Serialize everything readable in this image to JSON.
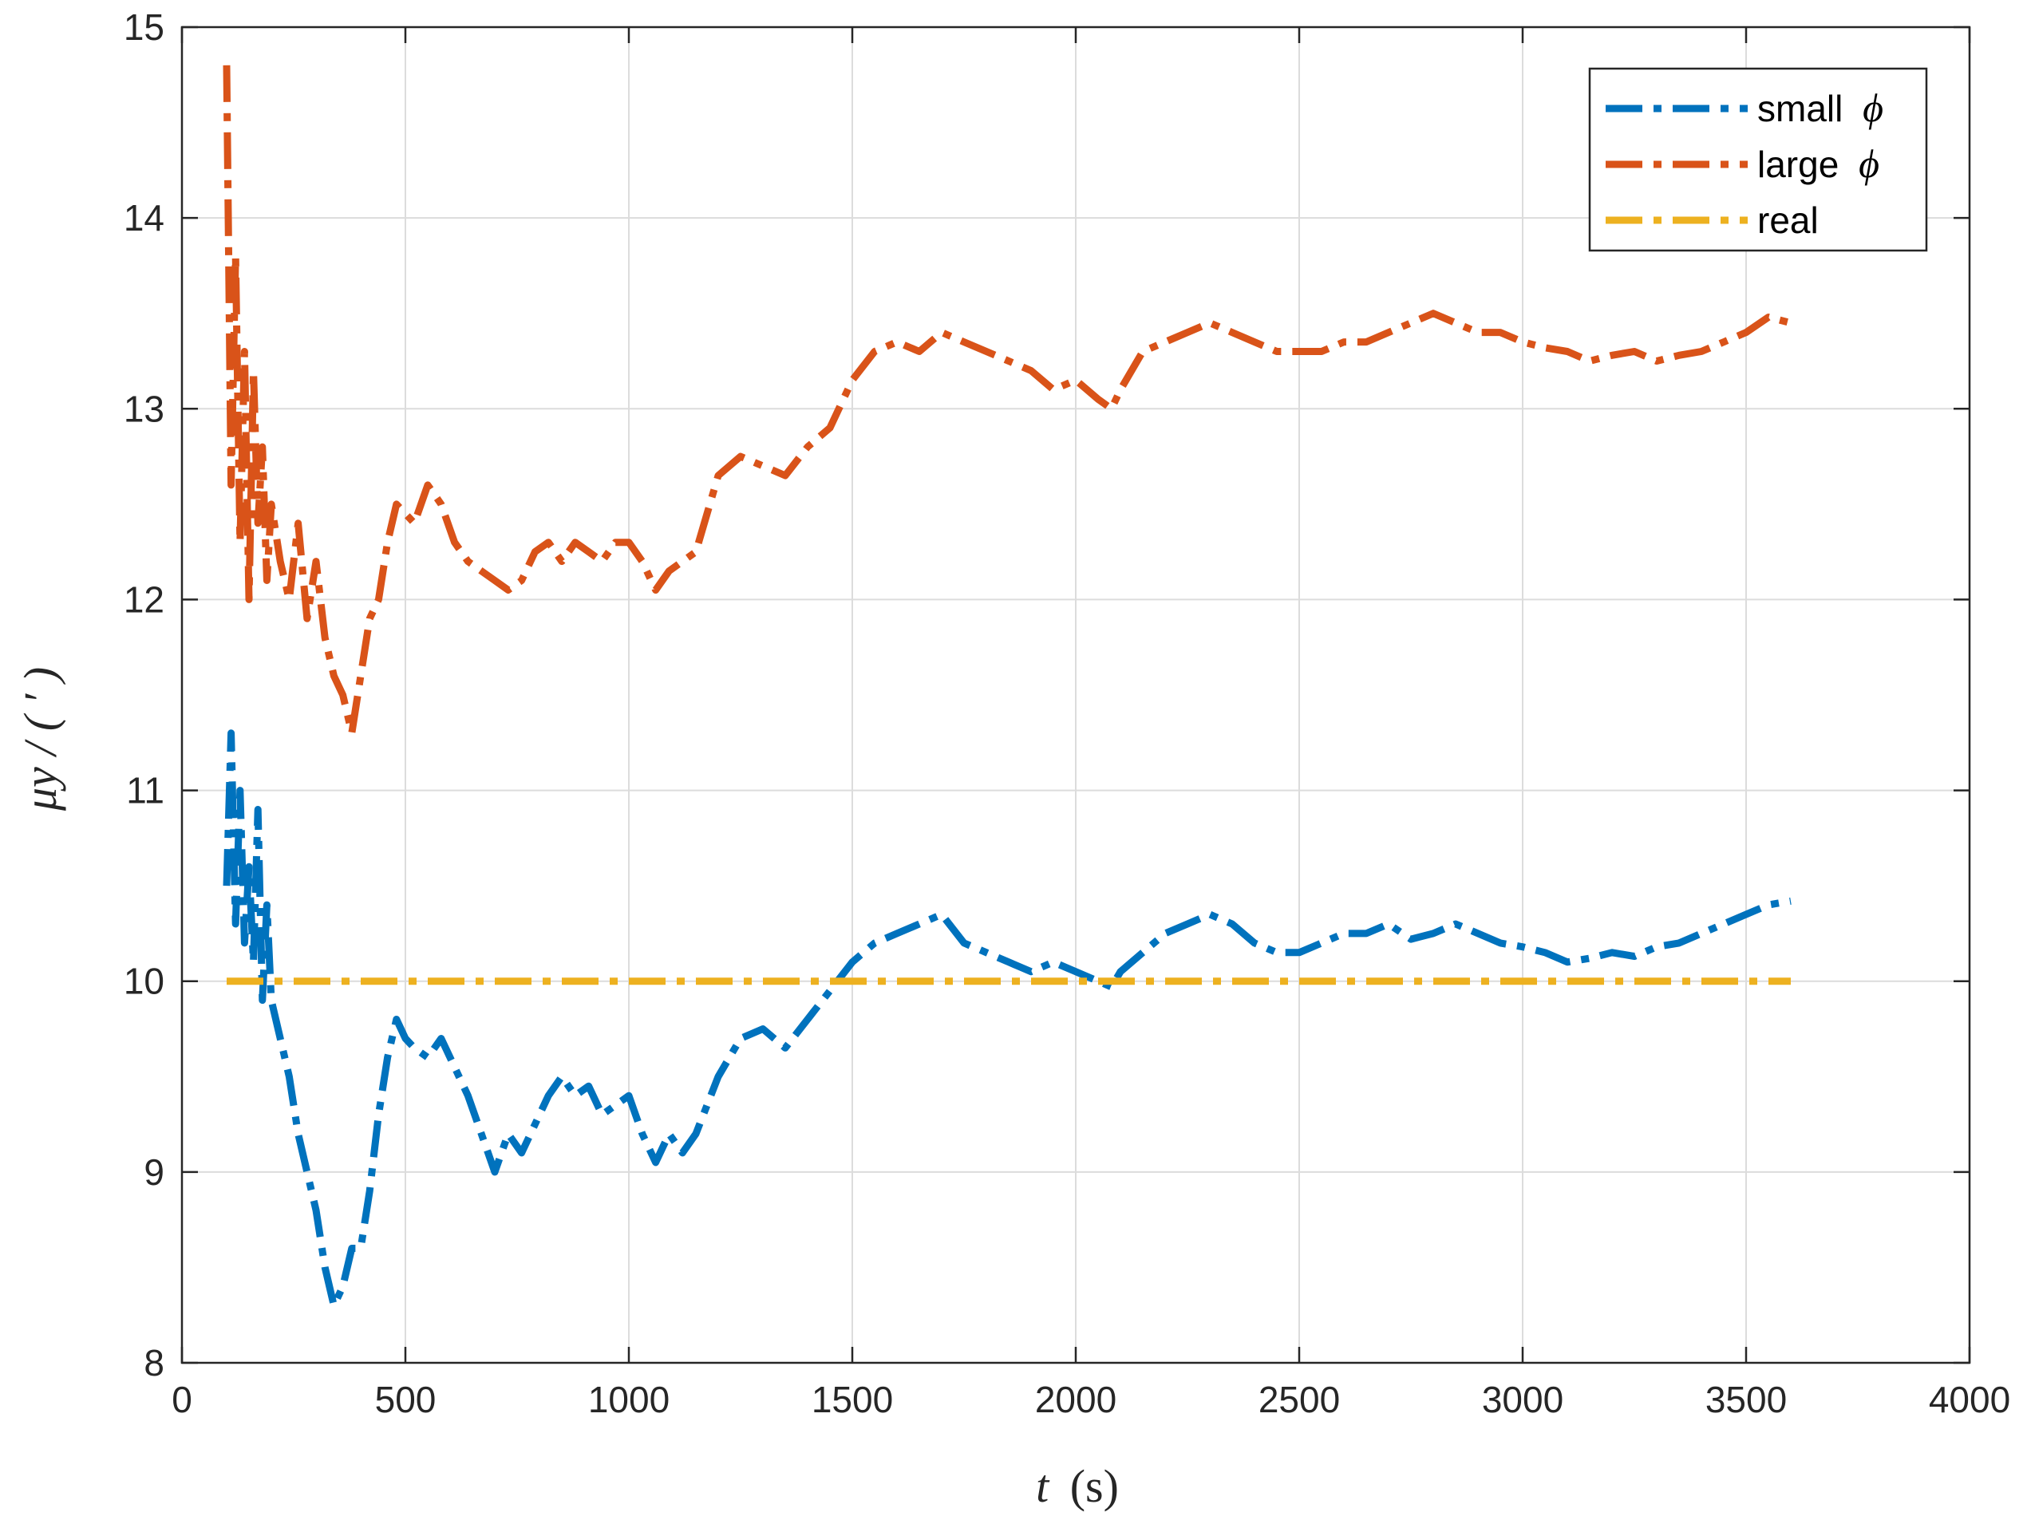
{
  "chart_data": {
    "type": "line",
    "title": "",
    "xlabel_var": "t",
    "xlabel_unit": "(s)",
    "ylabel": "μy  / ( ′ )",
    "xlim": [
      0,
      4000
    ],
    "ylim": [
      8,
      15
    ],
    "x_ticks": [
      0,
      500,
      1000,
      1500,
      2000,
      2500,
      3000,
      3500,
      4000
    ],
    "y_ticks": [
      8,
      9,
      10,
      11,
      12,
      13,
      14,
      15
    ],
    "grid": true,
    "legend_position": "top-right",
    "series": [
      {
        "name": "small φ",
        "label": "small",
        "symbol": "ϕ",
        "color": "#0072BD",
        "line_style": "dash-dot",
        "x": [
          100,
          110,
          120,
          130,
          140,
          150,
          160,
          170,
          180,
          190,
          200,
          220,
          240,
          260,
          280,
          300,
          320,
          340,
          360,
          380,
          400,
          420,
          440,
          460,
          480,
          500,
          520,
          550,
          580,
          610,
          640,
          670,
          700,
          730,
          760,
          790,
          820,
          850,
          880,
          910,
          940,
          970,
          1000,
          1030,
          1060,
          1090,
          1120,
          1150,
          1200,
          1250,
          1300,
          1350,
          1400,
          1450,
          1500,
          1550,
          1600,
          1650,
          1700,
          1750,
          1800,
          1850,
          1900,
          1950,
          2000,
          2050,
          2080,
          2100,
          2150,
          2200,
          2250,
          2300,
          2350,
          2400,
          2450,
          2500,
          2550,
          2600,
          2650,
          2700,
          2750,
          2800,
          2850,
          2900,
          2950,
          3000,
          3050,
          3100,
          3150,
          3200,
          3250,
          3300,
          3350,
          3400,
          3450,
          3500,
          3550,
          3600
        ],
        "y": [
          10.5,
          11.3,
          10.3,
          11.0,
          10.2,
          10.6,
          10.1,
          10.9,
          9.9,
          10.4,
          9.9,
          9.7,
          9.5,
          9.2,
          9.0,
          8.8,
          8.5,
          8.3,
          8.4,
          8.6,
          8.6,
          8.9,
          9.3,
          9.6,
          9.8,
          9.7,
          9.65,
          9.6,
          9.7,
          9.55,
          9.4,
          9.2,
          9.0,
          9.2,
          9.1,
          9.25,
          9.4,
          9.5,
          9.4,
          9.45,
          9.3,
          9.35,
          9.4,
          9.2,
          9.05,
          9.2,
          9.1,
          9.2,
          9.5,
          9.7,
          9.75,
          9.65,
          9.8,
          9.95,
          10.1,
          10.2,
          10.25,
          10.3,
          10.35,
          10.2,
          10.15,
          10.1,
          10.05,
          10.1,
          10.05,
          10.0,
          9.97,
          10.05,
          10.15,
          10.25,
          10.3,
          10.35,
          10.3,
          10.2,
          10.15,
          10.15,
          10.2,
          10.25,
          10.25,
          10.3,
          10.22,
          10.25,
          10.3,
          10.25,
          10.2,
          10.18,
          10.15,
          10.1,
          10.12,
          10.15,
          10.13,
          10.18,
          10.2,
          10.25,
          10.3,
          10.35,
          10.4,
          10.42
        ]
      },
      {
        "name": "large φ",
        "label": "large",
        "symbol": "ϕ",
        "color": "#D95319",
        "line_style": "dash-dot",
        "x": [
          100,
          110,
          120,
          130,
          140,
          150,
          160,
          170,
          180,
          190,
          200,
          220,
          240,
          260,
          280,
          300,
          320,
          340,
          360,
          380,
          400,
          420,
          440,
          460,
          480,
          500,
          520,
          550,
          580,
          610,
          640,
          670,
          700,
          730,
          760,
          790,
          820,
          850,
          880,
          910,
          940,
          970,
          1000,
          1030,
          1060,
          1090,
          1120,
          1150,
          1200,
          1250,
          1300,
          1350,
          1400,
          1450,
          1500,
          1550,
          1600,
          1650,
          1700,
          1750,
          1800,
          1850,
          1900,
          1950,
          2000,
          2050,
          2080,
          2100,
          2150,
          2200,
          2250,
          2300,
          2350,
          2400,
          2450,
          2500,
          2550,
          2600,
          2650,
          2700,
          2750,
          2800,
          2850,
          2900,
          2950,
          3000,
          3050,
          3100,
          3150,
          3200,
          3250,
          3300,
          3350,
          3400,
          3450,
          3500,
          3550,
          3600
        ],
        "y": [
          14.8,
          12.6,
          13.8,
          12.3,
          13.3,
          12.0,
          13.2,
          12.4,
          12.8,
          12.1,
          12.5,
          12.2,
          12.0,
          12.4,
          11.9,
          12.2,
          11.8,
          11.6,
          11.5,
          11.3,
          11.6,
          11.9,
          12.0,
          12.3,
          12.5,
          12.45,
          12.4,
          12.6,
          12.5,
          12.3,
          12.2,
          12.15,
          12.1,
          12.05,
          12.1,
          12.25,
          12.3,
          12.2,
          12.3,
          12.25,
          12.2,
          12.3,
          12.3,
          12.2,
          12.05,
          12.15,
          12.2,
          12.25,
          12.65,
          12.75,
          12.7,
          12.65,
          12.8,
          12.9,
          13.15,
          13.3,
          13.35,
          13.3,
          13.4,
          13.35,
          13.3,
          13.25,
          13.2,
          13.1,
          13.15,
          13.05,
          13.0,
          13.1,
          13.3,
          13.35,
          13.4,
          13.45,
          13.4,
          13.35,
          13.3,
          13.3,
          13.3,
          13.35,
          13.35,
          13.4,
          13.45,
          13.5,
          13.45,
          13.4,
          13.4,
          13.35,
          13.32,
          13.3,
          13.25,
          13.28,
          13.3,
          13.25,
          13.28,
          13.3,
          13.35,
          13.4,
          13.48,
          13.45
        ]
      },
      {
        "name": "real",
        "label": "real",
        "symbol": "",
        "color": "#EDB120",
        "line_style": "dash-dot",
        "x": [
          100,
          3600
        ],
        "y": [
          10,
          10
        ]
      }
    ]
  }
}
